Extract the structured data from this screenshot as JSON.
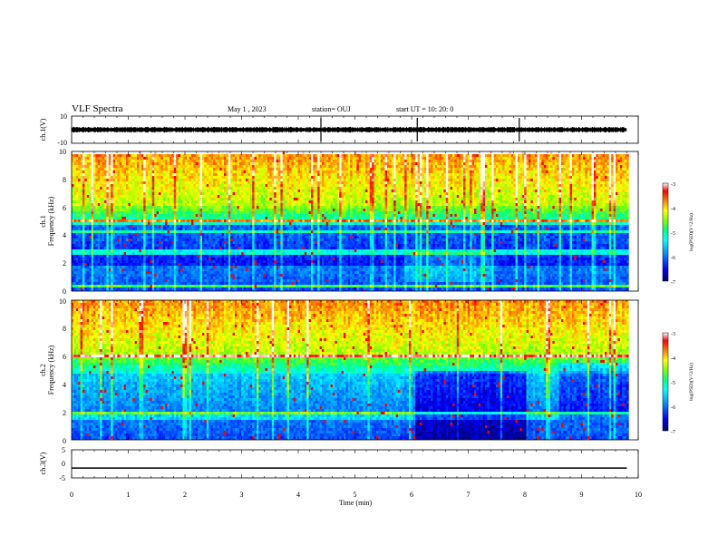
{
  "header": {
    "title": "VLF Spectra",
    "date": "May 1 , 2023",
    "station": "station= OUJ",
    "start_ut": "start UT =   10: 20: 0"
  },
  "colormap": {
    "stops": [
      "#000080",
      "#0000ff",
      "#00a0ff",
      "#00ffff",
      "#00ff80",
      "#80ff00",
      "#ffff00",
      "#ff8000",
      "#ff0000",
      "#ffffff"
    ]
  },
  "chart_data": [
    {
      "type": "line",
      "panel": "ch1-waveform",
      "ylabel": "ch.1(V)",
      "ylim": [
        -10,
        10
      ],
      "yticks": [
        "10",
        "-10"
      ],
      "baseline": 0,
      "spikes_min": [
        4.4,
        6.1,
        7.9
      ]
    },
    {
      "type": "heatmap",
      "panel": "ch1-spectrogram",
      "ylabel": [
        "ch.1",
        "Frequency (kHz)"
      ],
      "ylim": [
        0,
        10
      ],
      "yticks": [
        "0",
        "2",
        "4",
        "6",
        "8",
        "10"
      ],
      "colorbar": {
        "label": "log(PSD)(V^2/Hz)",
        "range": [
          -7,
          -3
        ],
        "ticks": [
          "-3",
          "-4",
          "-5",
          "-6",
          "-7"
        ]
      }
    },
    {
      "type": "heatmap",
      "panel": "ch2-spectrogram",
      "ylabel": [
        "ch.2",
        "Frequency (kHz)"
      ],
      "ylim": [
        0,
        10
      ],
      "yticks": [
        "0",
        "2",
        "4",
        "6",
        "8",
        "10"
      ],
      "colorbar": {
        "label": "log(PSD)(V^2/Hz)",
        "range": [
          -7,
          -3
        ],
        "ticks": [
          "-3",
          "-4",
          "-5",
          "-6",
          "-7"
        ]
      }
    },
    {
      "type": "line",
      "panel": "ch3-waveform",
      "ylabel": "ch.3(V)",
      "ylim": [
        -5,
        5
      ],
      "yticks": [
        "5",
        "0",
        "-5"
      ],
      "value": -1.5
    }
  ],
  "xaxis": {
    "label": "Time (min)",
    "range": [
      0,
      10
    ],
    "data_end": 9.8,
    "ticks": [
      "0",
      "1",
      "2",
      "3",
      "4",
      "5",
      "6",
      "7",
      "8",
      "9",
      "10"
    ]
  }
}
